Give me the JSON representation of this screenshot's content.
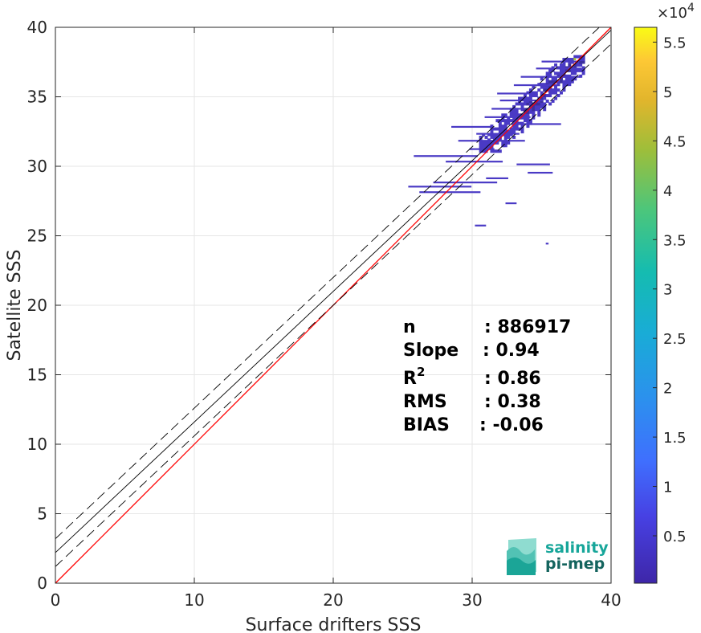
{
  "chart_data": {
    "type": "heatmap",
    "xlabel": "Surface drifters SSS",
    "ylabel": "Satellite SSS",
    "xlim": [
      0,
      40
    ],
    "ylim": [
      0,
      40
    ],
    "xticks": [
      "0",
      "10",
      "20",
      "30",
      "40"
    ],
    "yticks": [
      "0",
      "5",
      "10",
      "15",
      "20",
      "25",
      "30",
      "35",
      "40"
    ],
    "grid": true,
    "lines": [
      {
        "name": "1:1",
        "color": "#ff0000",
        "style": "solid",
        "slope": 1,
        "intercept": 0
      },
      {
        "name": "fit",
        "color": "#000000",
        "style": "solid",
        "slope": 0.94,
        "intercept": 2.2
      },
      {
        "name": "fit+",
        "color": "#000000",
        "style": "dashed",
        "slope": 0.94,
        "intercept": 3.2
      },
      {
        "name": "fit-",
        "color": "#000000",
        "style": "dashed",
        "slope": 0.94,
        "intercept": 1.2
      }
    ],
    "density_region": {
      "x": [
        25,
        38
      ],
      "y": [
        24.5,
        38
      ],
      "peak": [
        37.5,
        37.5
      ]
    },
    "colorbar": {
      "exponent_label": "×10",
      "exponent_power": "4",
      "ticks": [
        "0.5",
        "1",
        "1.5",
        "2",
        "2.5",
        "3",
        "3.5",
        "4",
        "4.5",
        "5",
        "5.5"
      ],
      "tick_values": [
        0.5,
        1,
        1.5,
        2,
        2.5,
        3,
        3.5,
        4,
        4.5,
        5,
        5.5
      ],
      "range": [
        0.02,
        5.65
      ],
      "colormap": "parula"
    },
    "stats": [
      {
        "label": "n",
        "value": ": 886917"
      },
      {
        "label": "Slope",
        "value": ": 0.94"
      },
      {
        "label": "R",
        "sup": "2",
        "value": ": 0.86"
      },
      {
        "label": "RMS",
        "value": ": 0.38"
      },
      {
        "label": "BIAS",
        "value": ": -0.06"
      }
    ]
  },
  "logo": {
    "line1": "salinity",
    "line2": "pi-mep"
  },
  "colors": {
    "identity_line": "#ff0000",
    "fit_line": "#000000",
    "logo_primary": "#17a69a",
    "logo_secondary": "#14645e"
  }
}
